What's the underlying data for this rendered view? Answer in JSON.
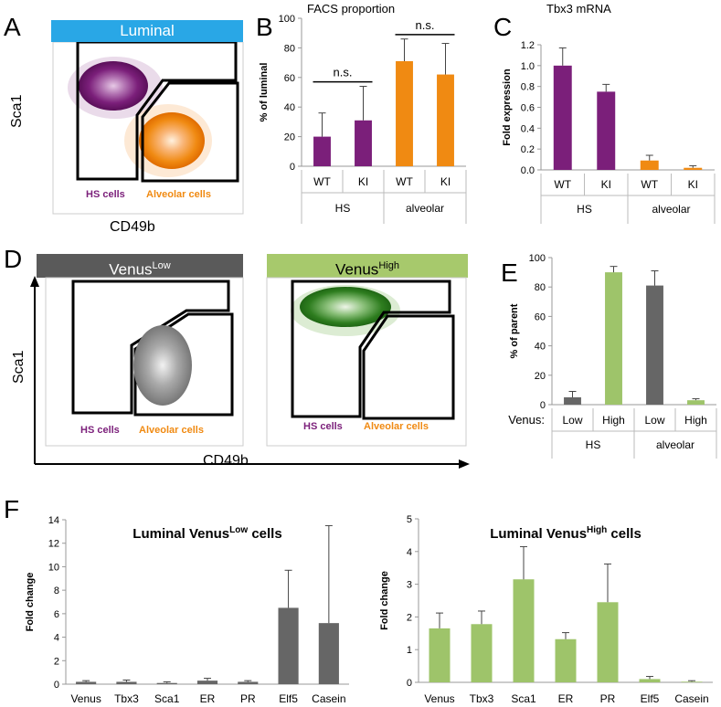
{
  "colors": {
    "purple": "#7b1f7a",
    "orange": "#f08a12",
    "green": "#9ec46a",
    "darkgreen": "#2e7d1f",
    "gray": "#666666",
    "blue": "#29a7e6",
    "headerGray": "#5a5a5a",
    "headerGreen": "#a7c96c"
  },
  "panels": {
    "A": {
      "letter": "A",
      "header": "Luminal",
      "ylabel": "Sca1",
      "xlabel": "CD49b",
      "gate_hs": "HS cells",
      "gate_alv": "Alveolar cells"
    },
    "D": {
      "letter": "D",
      "header_low": "Venus",
      "header_low_sup": "Low",
      "header_high": "Venus",
      "header_high_sup": "High",
      "ylabel": "Sca1",
      "xlabel": "CD49b",
      "gate_hs": "HS cells",
      "gate_alv": "Alveolar cells",
      "gate_hs2": "HS cells",
      "gate_alv2": "Alveolar cells"
    },
    "B": {
      "letter": "B"
    },
    "C": {
      "letter": "C"
    },
    "E": {
      "letter": "E"
    },
    "F": {
      "letter": "F"
    }
  },
  "chart_data": [
    {
      "id": "B",
      "type": "bar",
      "title": "FACS proportion",
      "ylabel": "% of luminal",
      "ylim": [
        0,
        100
      ],
      "yticks": [
        0,
        20,
        40,
        60,
        80,
        100
      ],
      "categories": [
        "WT",
        "KI",
        "WT",
        "KI"
      ],
      "groups": [
        "HS",
        "alveolar"
      ],
      "values": [
        20,
        31,
        71,
        62
      ],
      "errors": [
        16,
        23,
        15,
        21
      ],
      "colors": [
        "#7b1f7a",
        "#7b1f7a",
        "#f08a12",
        "#f08a12"
      ],
      "annotations": [
        "n.s.",
        "n.s."
      ]
    },
    {
      "id": "C",
      "type": "bar",
      "title": "Tbx3 mRNA",
      "ylabel": "Fold expression",
      "ylim": [
        0,
        1.2
      ],
      "yticks": [
        "0.0",
        "0.2",
        "0.4",
        "0.6",
        "0.8",
        "1.0",
        "1.2"
      ],
      "categories": [
        "WT",
        "KI",
        "WT",
        "KI"
      ],
      "groups": [
        "HS",
        "alveolar"
      ],
      "values": [
        1.0,
        0.75,
        0.09,
        0.02
      ],
      "errors": [
        0.17,
        0.07,
        0.05,
        0.02
      ],
      "colors": [
        "#7b1f7a",
        "#7b1f7a",
        "#f08a12",
        "#f08a12"
      ]
    },
    {
      "id": "E",
      "type": "bar",
      "ylabel": "% of parent",
      "ylim": [
        0,
        100
      ],
      "yticks": [
        0,
        20,
        40,
        60,
        80,
        100
      ],
      "rowlabel": "Venus:",
      "categories": [
        "Low",
        "High",
        "Low",
        "High"
      ],
      "groups": [
        "HS",
        "alveolar"
      ],
      "values": [
        5,
        90,
        81,
        3
      ],
      "errors": [
        4,
        4,
        10,
        1
      ],
      "colors": [
        "#666666",
        "#9ec46a",
        "#666666",
        "#9ec46a"
      ]
    },
    {
      "id": "F1",
      "type": "bar",
      "title": "Luminal Venus",
      "title_sup": "Low",
      "title_end": " cells",
      "ylabel": "Fold change",
      "ylim": [
        0,
        14
      ],
      "yticks": [
        0,
        2,
        4,
        6,
        8,
        10,
        12,
        14
      ],
      "categories": [
        "Venus",
        "Tbx3",
        "Sca1",
        "ER",
        "PR",
        "Elf5",
        "Casein"
      ],
      "values": [
        0.2,
        0.2,
        0.1,
        0.3,
        0.2,
        6.5,
        5.2
      ],
      "errors": [
        0.1,
        0.15,
        0.1,
        0.2,
        0.1,
        3.2,
        8.3
      ],
      "color": "#666666"
    },
    {
      "id": "F2",
      "type": "bar",
      "title": "Luminal Venus",
      "title_sup": "High",
      "title_end": " cells",
      "ylabel": "Fold change",
      "ylim": [
        0,
        5
      ],
      "yticks": [
        0,
        1,
        2,
        3,
        4,
        5
      ],
      "categories": [
        "Venus",
        "Tbx3",
        "Sca1",
        "ER",
        "PR",
        "Elf5",
        "Casein"
      ],
      "values": [
        1.65,
        1.78,
        3.15,
        1.32,
        2.45,
        0.1,
        0.02
      ],
      "errors": [
        0.47,
        0.4,
        1.0,
        0.2,
        1.17,
        0.08,
        0.03
      ],
      "color": "#9ec46a"
    }
  ]
}
